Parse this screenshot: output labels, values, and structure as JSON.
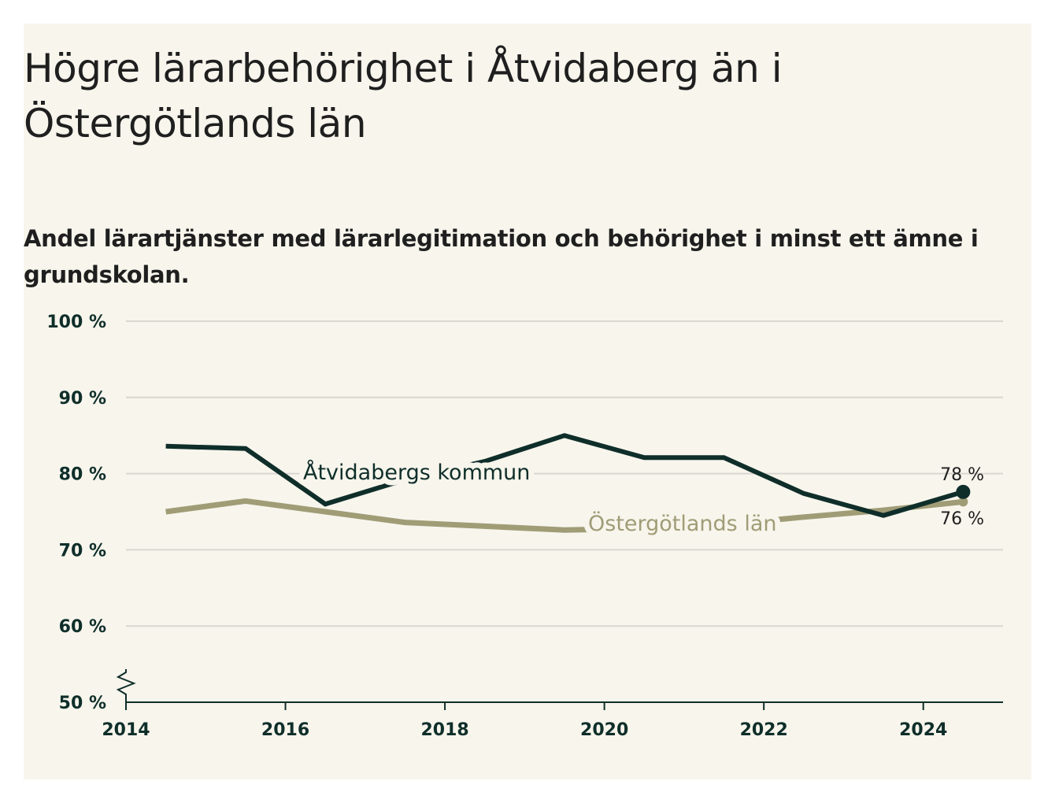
{
  "chart_data": {
    "type": "line",
    "title": "Högre lärarbehörighet i Åtvidaberg än i Östergötlands län",
    "subtitle": "Andel lärartjänster med lärarlegitimation och behörighet i minst ett ämne i grundskolan.",
    "xlabel": "",
    "ylabel": "",
    "x": [
      2014.5,
      2015.5,
      2016.5,
      2017.5,
      2018.5,
      2019.5,
      2020.5,
      2021.5,
      2022.5,
      2023.5,
      2024.5
    ],
    "xlim": [
      2014,
      2025
    ],
    "ylim": [
      50,
      100
    ],
    "y_ticks": [
      "100 %",
      "90 %",
      "80 %",
      "70 %",
      "60 %",
      "50 %"
    ],
    "y_tick_values": [
      100,
      90,
      80,
      70,
      60,
      50
    ],
    "x_ticks": [
      "2014",
      "2016",
      "2018",
      "2020",
      "2022",
      "2024"
    ],
    "x_tick_values": [
      2014,
      2016,
      2018,
      2020,
      2022,
      2024
    ],
    "axis_break": true,
    "grid": true,
    "series": [
      {
        "name": "Åtvidabergs kommun",
        "color": "#0f2e2a",
        "values": [
          83.6,
          83.3,
          76.0,
          79.2,
          81.6,
          85.0,
          82.1,
          82.1,
          77.4,
          74.5,
          77.6
        ],
        "end_label": "78 %"
      },
      {
        "name": "Östergötlands län",
        "color": "#a09c76",
        "values": [
          75.0,
          76.4,
          75.0,
          73.6,
          73.1,
          72.6,
          72.8,
          73.3,
          74.3,
          75.2,
          76.3
        ],
        "end_label": "76 %"
      }
    ]
  }
}
